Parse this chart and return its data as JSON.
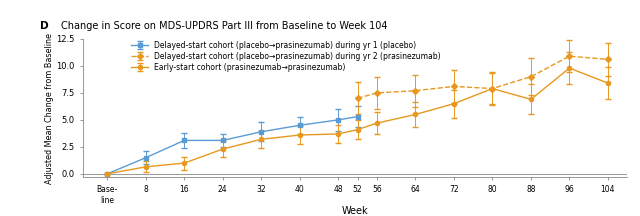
{
  "title_prefix": "D",
  "title_text": "Change in Score on MDS-UPDRS Part III from Baseline to Week 104",
  "ylabel": "Adjusted Mean Change from Baseline",
  "xlabel": "Week",
  "blue_weeks": [
    0,
    8,
    16,
    24,
    32,
    40,
    48,
    52
  ],
  "blue_values": [
    0.0,
    1.5,
    3.1,
    3.1,
    3.9,
    4.5,
    5.0,
    5.3
  ],
  "blue_err_low": [
    0.0,
    0.6,
    0.7,
    0.6,
    0.9,
    0.8,
    1.0,
    1.0
  ],
  "blue_err_high": [
    0.0,
    0.6,
    0.7,
    0.6,
    0.9,
    0.8,
    1.0,
    1.0
  ],
  "orange_dashed_weeks": [
    52,
    56,
    64,
    72,
    80,
    88,
    96,
    104
  ],
  "orange_dashed_values": [
    7.0,
    7.5,
    7.7,
    8.1,
    7.9,
    9.0,
    10.9,
    10.6
  ],
  "orange_dashed_err_low": [
    1.5,
    1.5,
    1.5,
    1.5,
    1.5,
    1.7,
    1.5,
    1.5
  ],
  "orange_dashed_err_high": [
    1.5,
    1.5,
    1.5,
    1.5,
    1.5,
    1.7,
    1.5,
    1.5
  ],
  "orange_solid_weeks": [
    0,
    8,
    16,
    24,
    32,
    40,
    48,
    52,
    56,
    64,
    72,
    80,
    88,
    96,
    104
  ],
  "orange_solid_values": [
    0.0,
    0.65,
    1.0,
    2.3,
    3.2,
    3.6,
    3.7,
    4.1,
    4.7,
    5.5,
    6.5,
    7.9,
    6.9,
    9.8,
    8.4
  ],
  "orange_solid_err_low": [
    0.0,
    0.5,
    0.6,
    0.7,
    0.8,
    0.8,
    0.8,
    0.9,
    1.0,
    1.2,
    1.3,
    1.4,
    1.4,
    1.5,
    1.5
  ],
  "orange_solid_err_high": [
    0.0,
    0.5,
    0.6,
    0.7,
    0.8,
    0.8,
    0.8,
    0.9,
    1.0,
    1.2,
    1.3,
    1.4,
    1.4,
    1.5,
    1.5
  ],
  "blue_color": "#5B9BD5",
  "orange_color": "#E8981E",
  "ylim": [
    -0.3,
    12.5
  ],
  "yticks": [
    0.0,
    2.5,
    5.0,
    7.5,
    10.0,
    12.5
  ],
  "legend_blue_solid": "Delayed-start cohort (placebo→prasinezumab) during yr 1 (placebo)",
  "legend_orange_dashed": "Delayed-start cohort (placebo→prasinezumab) during yr 2 (prasinezumab)",
  "legend_orange_solid": "Early-start cohort (prasinezumab→prasinezumab)"
}
